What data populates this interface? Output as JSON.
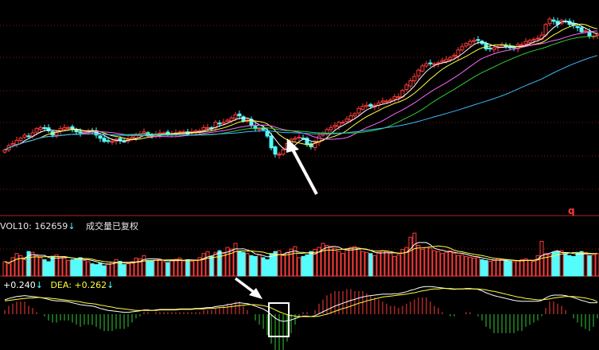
{
  "colors": {
    "background": "#000000",
    "up": "#ff3b3b",
    "down": "#54fcfc",
    "grid": "#7a1818",
    "ma5": "#ffffff",
    "ma10": "#ffff40",
    "ma20": "#ff66ff",
    "ma30": "#33cc33",
    "ma60": "#3fb8ff",
    "dif": "#ffffff",
    "dea": "#ffff40",
    "macd_pos": "#ff3b3b",
    "macd_neg": "#33cc33",
    "label_text": "#e8e8e8",
    "marker_q": "#ff3b3b"
  },
  "labels": {
    "vol": "VOL10: 162659",
    "vol_arrow": "↓",
    "vol_note": "成交量已复权",
    "dif": "+0.240",
    "dif_arrow": "↓",
    "dea": "DEA: +0.262",
    "dea_arrow": "↓",
    "marker": "q"
  },
  "chart_data": [
    {
      "type": "candlestick",
      "panel": "price",
      "n": 150,
      "ylim": [
        4,
        23
      ],
      "close": [
        9.5,
        9.9,
        10.1,
        10.4,
        10.6,
        10.9,
        10.8,
        11.1,
        11.5,
        11.6,
        11.5,
        11.3,
        10.9,
        11.2,
        11.5,
        11.6,
        11.6,
        11.4,
        11.2,
        11.1,
        11.2,
        11.3,
        11.2,
        10.9,
        10.6,
        10.3,
        10.3,
        10.3,
        10.5,
        10.4,
        10.3,
        10.5,
        10.7,
        10.9,
        11.0,
        11.2,
        10.9,
        10.8,
        11.0,
        11.1,
        11.1,
        11.0,
        11.0,
        11.1,
        11.2,
        11.2,
        11.0,
        11.2,
        11.3,
        11.3,
        11.6,
        11.6,
        11.5,
        12.1,
        12.0,
        12.1,
        12.3,
        12.5,
        12.8,
        12.7,
        12.2,
        12.3,
        11.8,
        11.5,
        11.5,
        11.4,
        10.8,
        9.7,
        9.1,
        9.1,
        9.5,
        10.1,
        10.5,
        10.6,
        10.7,
        10.6,
        10.0,
        9.8,
        10.2,
        10.8,
        11.1,
        11.4,
        11.6,
        11.8,
        12.1,
        12.1,
        12.4,
        12.7,
        12.9,
        13.4,
        13.6,
        13.7,
        13.6,
        13.7,
        13.9,
        14.1,
        14.1,
        14.2,
        14.5,
        14.5,
        15.1,
        15.6,
        16.0,
        16.4,
        17.0,
        17.4,
        17.6,
        17.6,
        17.6,
        17.7,
        17.9,
        18.0,
        18.2,
        18.4,
        18.9,
        19.2,
        19.5,
        19.7,
        19.8,
        19.8,
        19.5,
        19.0,
        19.0,
        19.1,
        19.2,
        19.4,
        19.2,
        19.1,
        19.1,
        19.4,
        19.4,
        19.7,
        19.8,
        19.9,
        20.0,
        20.3,
        21.3,
        21.8,
        21.6,
        21.3,
        21.7,
        21.6,
        21.3,
        21.2,
        21.0,
        20.6,
        20.7,
        20.2,
        20.2,
        20.4
      ],
      "ma_periods": [
        5,
        10,
        20,
        30,
        60
      ]
    },
    {
      "type": "bar",
      "panel": "volume",
      "n": 150,
      "values": [
        35,
        30,
        45,
        55,
        50,
        40,
        60,
        58,
        50,
        45,
        40,
        35,
        48,
        52,
        47,
        44,
        38,
        40,
        42,
        45,
        38,
        35,
        30,
        28,
        32,
        25,
        30,
        34,
        40,
        36,
        28,
        30,
        35,
        44,
        42,
        50,
        38,
        36,
        42,
        40,
        35,
        33,
        38,
        41,
        44,
        37,
        40,
        36,
        38,
        45,
        55,
        60,
        48,
        58,
        62,
        55,
        70,
        66,
        80,
        60,
        58,
        55,
        50,
        48,
        52,
        45,
        40,
        55,
        60,
        62,
        50,
        58,
        66,
        72,
        45,
        48,
        52,
        60,
        65,
        70,
        80,
        75,
        70,
        68,
        60,
        55,
        65,
        70,
        72,
        68,
        60,
        58,
        55,
        50,
        58,
        62,
        60,
        55,
        48,
        52,
        65,
        70,
        95,
        105,
        75,
        65,
        70,
        68,
        62,
        60,
        55,
        58,
        62,
        56,
        50,
        52,
        48,
        46,
        44,
        45,
        40,
        38,
        36,
        38,
        42,
        40,
        38,
        36,
        35,
        37,
        40,
        42,
        38,
        36,
        50,
        85,
        55,
        52,
        58,
        60,
        62,
        55,
        50,
        48,
        56,
        60,
        58,
        50,
        52,
        55
      ],
      "ma_periods": [
        5,
        10
      ]
    },
    {
      "type": "macd",
      "panel": "macd",
      "n": 150,
      "dif": [
        0.3,
        0.33,
        0.35,
        0.37,
        0.38,
        0.39,
        0.38,
        0.37,
        0.36,
        0.35,
        0.33,
        0.31,
        0.29,
        0.28,
        0.28,
        0.27,
        0.26,
        0.24,
        0.22,
        0.2,
        0.19,
        0.18,
        0.17,
        0.15,
        0.12,
        0.1,
        0.08,
        0.07,
        0.06,
        0.05,
        0.04,
        0.04,
        0.05,
        0.06,
        0.07,
        0.09,
        0.09,
        0.08,
        0.09,
        0.1,
        0.1,
        0.1,
        0.1,
        0.1,
        0.11,
        0.11,
        0.11,
        0.11,
        0.12,
        0.12,
        0.13,
        0.14,
        0.14,
        0.16,
        0.17,
        0.18,
        0.2,
        0.21,
        0.23,
        0.24,
        0.23,
        0.22,
        0.2,
        0.17,
        0.14,
        0.11,
        0.06,
        -0.01,
        -0.08,
        -0.13,
        -0.15,
        -0.14,
        -0.12,
        -0.09,
        -0.06,
        -0.04,
        -0.04,
        -0.05,
        -0.03,
        0.01,
        0.05,
        0.09,
        0.13,
        0.17,
        0.2,
        0.23,
        0.26,
        0.29,
        0.31,
        0.34,
        0.36,
        0.38,
        0.39,
        0.4,
        0.41,
        0.42,
        0.42,
        0.42,
        0.43,
        0.43,
        0.45,
        0.47,
        0.5,
        0.52,
        0.55,
        0.57,
        0.58,
        0.58,
        0.57,
        0.56,
        0.55,
        0.54,
        0.53,
        0.52,
        0.53,
        0.53,
        0.54,
        0.54,
        0.53,
        0.52,
        0.49,
        0.45,
        0.42,
        0.39,
        0.37,
        0.35,
        0.33,
        0.31,
        0.29,
        0.28,
        0.27,
        0.27,
        0.27,
        0.27,
        0.27,
        0.29,
        0.34,
        0.38,
        0.4,
        0.4,
        0.4,
        0.39,
        0.37,
        0.35,
        0.32,
        0.29,
        0.27,
        0.24,
        0.24,
        0.24
      ],
      "dea": [
        0.28,
        0.29,
        0.3,
        0.31,
        0.32,
        0.33,
        0.34,
        0.34,
        0.35,
        0.35,
        0.34,
        0.34,
        0.33,
        0.32,
        0.31,
        0.3,
        0.29,
        0.28,
        0.27,
        0.26,
        0.24,
        0.23,
        0.22,
        0.21,
        0.19,
        0.18,
        0.16,
        0.15,
        0.13,
        0.12,
        0.11,
        0.1,
        0.09,
        0.08,
        0.08,
        0.08,
        0.08,
        0.08,
        0.08,
        0.09,
        0.09,
        0.09,
        0.09,
        0.09,
        0.1,
        0.1,
        0.1,
        0.1,
        0.11,
        0.11,
        0.11,
        0.12,
        0.12,
        0.13,
        0.14,
        0.14,
        0.15,
        0.16,
        0.17,
        0.18,
        0.19,
        0.2,
        0.2,
        0.2,
        0.19,
        0.18,
        0.16,
        0.13,
        0.09,
        0.05,
        0.02,
        -0.01,
        -0.03,
        -0.04,
        -0.05,
        -0.05,
        -0.05,
        -0.05,
        -0.05,
        -0.04,
        -0.02,
        0.0,
        0.03,
        0.06,
        0.09,
        0.12,
        0.14,
        0.17,
        0.2,
        0.23,
        0.25,
        0.28,
        0.3,
        0.32,
        0.34,
        0.36,
        0.37,
        0.38,
        0.39,
        0.4,
        0.41,
        0.42,
        0.44,
        0.45,
        0.47,
        0.49,
        0.5,
        0.52,
        0.53,
        0.53,
        0.54,
        0.54,
        0.54,
        0.53,
        0.53,
        0.53,
        0.53,
        0.53,
        0.53,
        0.53,
        0.52,
        0.51,
        0.49,
        0.48,
        0.46,
        0.44,
        0.42,
        0.4,
        0.38,
        0.36,
        0.35,
        0.33,
        0.32,
        0.31,
        0.3,
        0.3,
        0.31,
        0.32,
        0.34,
        0.35,
        0.36,
        0.37,
        0.37,
        0.37,
        0.36,
        0.35,
        0.34,
        0.32,
        0.3,
        0.26
      ]
    }
  ]
}
